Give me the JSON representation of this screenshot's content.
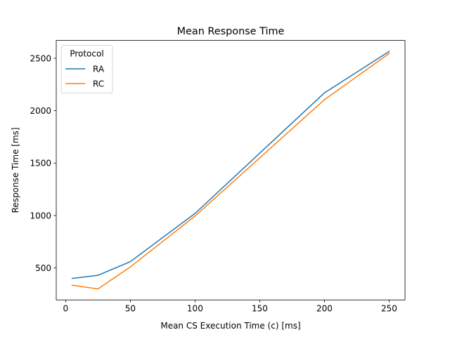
{
  "chart_data": {
    "type": "line",
    "title": "Mean Response Time",
    "xlabel": "Mean CS Execution Time (c) [ms]",
    "ylabel": "Response Time [ms]",
    "xlim": [
      -7.25,
      262.25
    ],
    "ylim": [
      195,
      2670
    ],
    "xticks": [
      0,
      50,
      100,
      150,
      200,
      250
    ],
    "yticks": [
      500,
      1000,
      1500,
      2000,
      2500
    ],
    "grid": false,
    "legend": {
      "title": "Protocol",
      "placement": "top-left"
    },
    "x": [
      5,
      25,
      50,
      100,
      200,
      250
    ],
    "series": [
      {
        "name": "RA",
        "color": "#1f77b4",
        "values": [
          400,
          430,
          560,
          1020,
          2170,
          2565
        ]
      },
      {
        "name": "RC",
        "color": "#ff7f0e",
        "values": [
          335,
          300,
          510,
          995,
          2105,
          2545
        ]
      }
    ]
  }
}
